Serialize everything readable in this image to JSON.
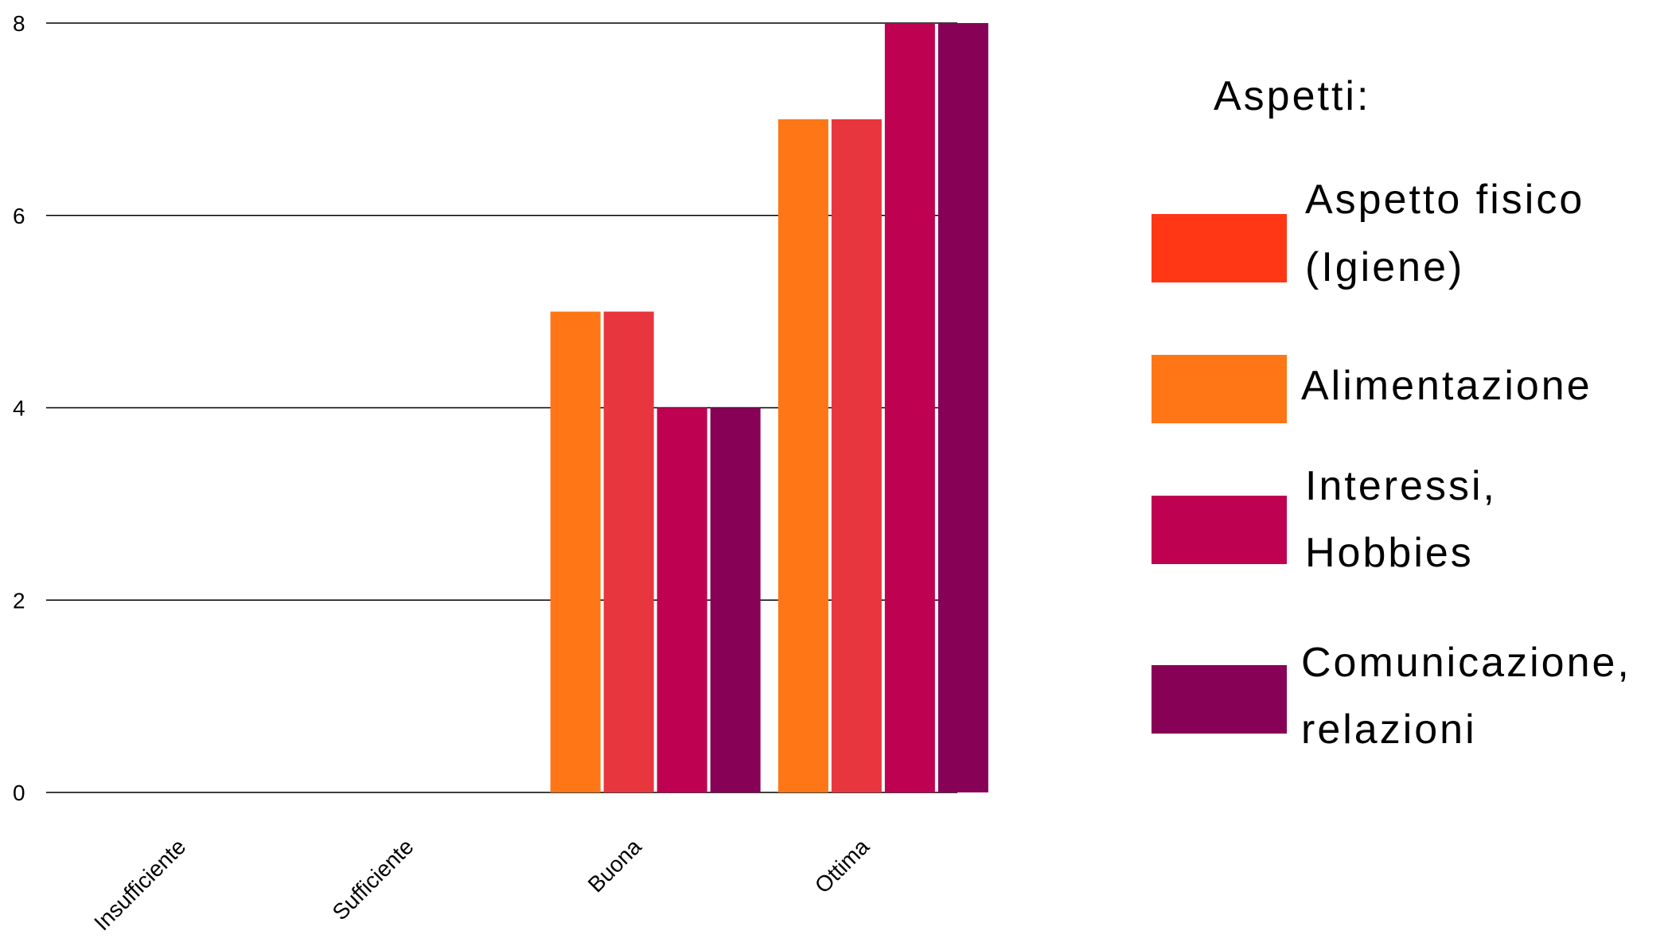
{
  "chart_data": {
    "type": "bar",
    "categories": [
      "Insufficiente",
      "Sufficiente",
      "Buona",
      "Ottima"
    ],
    "series": [
      {
        "name": "Aspetto fisico (Igiene)",
        "name_lines": [
          "Aspetto fisico",
          "(Igiene)"
        ],
        "color": "#ff3715",
        "values": [
          0,
          0,
          5,
          7
        ]
      },
      {
        "name": "Alimentazione",
        "name_lines": [
          "Alimentazione"
        ],
        "color": "#ff7617",
        "values": [
          0,
          0,
          5,
          7
        ]
      },
      {
        "name": "Interessi, Hobbies",
        "name_lines": [
          "Interessi,",
          "Hobbies"
        ],
        "color": "#bf0152",
        "values": [
          0,
          0,
          4,
          8
        ]
      },
      {
        "name": "Comunicazione, relazioni",
        "name_lines": [
          "Comunicazione,",
          "relazioni"
        ],
        "color": "#870157",
        "values": [
          0,
          0,
          4,
          8
        ]
      }
    ],
    "bar_colors_drawn": [
      "#ff7617",
      "#e8363e",
      "#bf0152",
      "#870157"
    ],
    "ylim": [
      0,
      8
    ],
    "yticks": [
      0,
      2,
      4,
      6,
      8
    ],
    "grid": true,
    "legend": {
      "title": "Aspetti:",
      "placement": "right"
    },
    "title": "",
    "xlabel": "",
    "ylabel": ""
  }
}
